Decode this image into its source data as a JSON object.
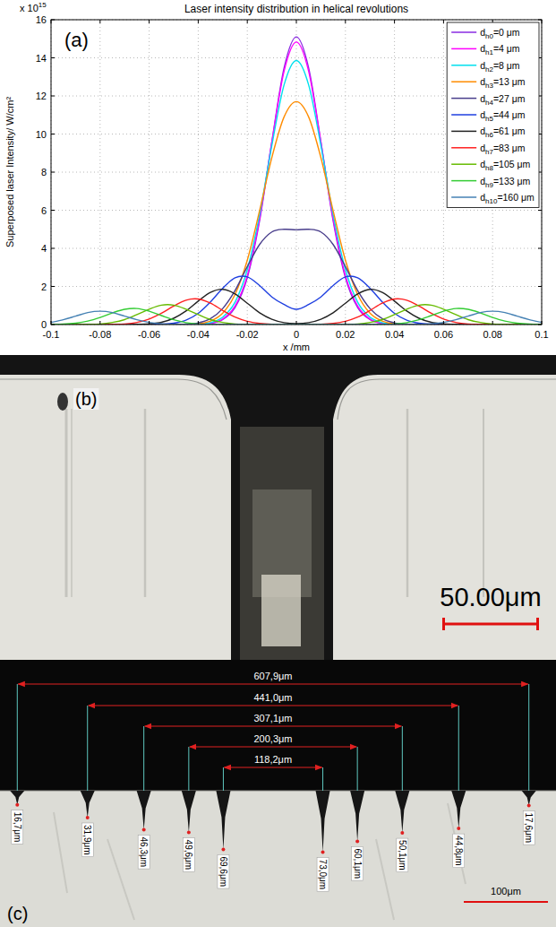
{
  "chart_data": {
    "type": "line",
    "panel_label": "(a)",
    "title": "Laser intensity distribution in helical revolutions",
    "xlabel": "x /mm",
    "ylabel": "Superposed laser Intensity/ W/cm²",
    "annotations": [
      {
        "text": "x 10",
        "superscript": "15"
      }
    ],
    "xlim": [
      -0.1,
      0.1
    ],
    "ylim": [
      0,
      16
    ],
    "xticks": [
      -0.1,
      -0.08,
      -0.06,
      -0.04,
      -0.02,
      0,
      0.02,
      0.04,
      0.06,
      0.08,
      0.1
    ],
    "yticks": [
      0,
      2,
      4,
      6,
      8,
      10,
      12,
      14,
      16
    ],
    "grid": true,
    "legend": "upper right",
    "x": [
      -0.1,
      -0.095,
      -0.09,
      -0.085,
      -0.08,
      -0.075,
      -0.07,
      -0.065,
      -0.06,
      -0.055,
      -0.05,
      -0.045,
      -0.04,
      -0.035,
      -0.03,
      -0.025,
      -0.02,
      -0.015,
      -0.01,
      -0.005,
      0,
      0.005,
      0.01,
      0.015,
      0.02,
      0.025,
      0.03,
      0.035,
      0.04,
      0.045,
      0.05,
      0.055,
      0.06,
      0.065,
      0.07,
      0.075,
      0.08,
      0.085,
      0.09,
      0.095,
      0.1
    ],
    "series": [
      {
        "name": "dh0=0 μm",
        "color": "#8a2be2",
        "values": [
          0,
          0,
          0,
          0,
          0,
          0,
          0,
          0,
          0,
          0,
          0,
          0,
          0.01,
          0.06,
          0.26,
          0.89,
          2.46,
          5.44,
          9.59,
          13.48,
          15.1,
          13.48,
          9.59,
          5.44,
          2.46,
          0.89,
          0.26,
          0.06,
          0.01,
          0,
          0,
          0,
          0,
          0,
          0,
          0,
          0,
          0,
          0,
          0,
          0
        ]
      },
      {
        "name": "dh1=4 μm",
        "color": "#ff00ff",
        "values": [
          0,
          0,
          0,
          0,
          0,
          0,
          0,
          0,
          0,
          0,
          0,
          0,
          0.01,
          0.07,
          0.29,
          0.97,
          2.57,
          5.55,
          9.57,
          13.3,
          14.83,
          13.3,
          9.57,
          5.55,
          2.57,
          0.97,
          0.29,
          0.07,
          0.01,
          0,
          0,
          0,
          0,
          0,
          0,
          0,
          0,
          0,
          0,
          0,
          0
        ]
      },
      {
        "name": "dh2=8 μm",
        "color": "#00e0ee",
        "values": [
          0,
          0,
          0,
          0,
          0,
          0,
          0,
          0,
          0,
          0,
          0,
          0,
          0.02,
          0.1,
          0.39,
          1.17,
          2.88,
          5.76,
          9.39,
          12.58,
          13.86,
          12.58,
          9.39,
          5.76,
          2.88,
          1.17,
          0.39,
          0.1,
          0.02,
          0,
          0,
          0,
          0,
          0,
          0,
          0,
          0,
          0,
          0,
          0,
          0
        ]
      },
      {
        "name": "dh3=13 μm",
        "color": "#ff8c00",
        "values": [
          0,
          0,
          0,
          0,
          0,
          0,
          0,
          0,
          0,
          0,
          0,
          0.01,
          0.04,
          0.18,
          0.6,
          1.58,
          3.38,
          5.97,
          8.76,
          10.9,
          11.7,
          10.9,
          8.76,
          5.97,
          3.38,
          1.58,
          0.6,
          0.18,
          0.04,
          0.01,
          0,
          0,
          0,
          0,
          0,
          0,
          0,
          0,
          0,
          0,
          0
        ]
      },
      {
        "name": "dh4=27 μm",
        "color": "#483d8b",
        "values": [
          0,
          0,
          0,
          0,
          0,
          0,
          0,
          0,
          0,
          0,
          0,
          0.02,
          0.09,
          0.31,
          0.84,
          1.78,
          3.04,
          4.2,
          4.86,
          5.0,
          4.97,
          5.0,
          4.86,
          4.2,
          3.04,
          1.78,
          0.84,
          0.31,
          0.09,
          0.02,
          0,
          0,
          0,
          0,
          0,
          0,
          0,
          0,
          0,
          0,
          0
        ]
      },
      {
        "name": "dh5=44 μm",
        "color": "#1f3fe0",
        "values": [
          0,
          0,
          0,
          0,
          0,
          0,
          0,
          0,
          0,
          0.02,
          0.07,
          0.23,
          0.59,
          1.19,
          1.91,
          2.45,
          2.5,
          2.05,
          1.45,
          1.05,
          0.8,
          1.05,
          1.45,
          2.05,
          2.5,
          2.45,
          1.91,
          1.19,
          0.59,
          0.23,
          0.07,
          0.02,
          0,
          0,
          0,
          0,
          0,
          0,
          0,
          0,
          0
        ]
      },
      {
        "name": "dh6=61 μm",
        "color": "#222222",
        "values": [
          0,
          0,
          0,
          0,
          0,
          0,
          0,
          0.01,
          0.04,
          0.12,
          0.33,
          0.71,
          1.23,
          1.69,
          1.85,
          1.61,
          1.12,
          0.62,
          0.28,
          0.1,
          0.05,
          0.1,
          0.28,
          0.62,
          1.12,
          1.61,
          1.85,
          1.69,
          1.23,
          0.71,
          0.33,
          0.12,
          0.04,
          0.01,
          0,
          0,
          0,
          0,
          0,
          0,
          0
        ]
      },
      {
        "name": "dh7=83 μm",
        "color": "#ff2020",
        "values": [
          0,
          0,
          0,
          0,
          0,
          0.01,
          0.03,
          0.11,
          0.29,
          0.59,
          0.97,
          1.28,
          1.34,
          1.12,
          0.74,
          0.39,
          0.17,
          0.06,
          0.01,
          0,
          0,
          0,
          0.01,
          0.06,
          0.17,
          0.39,
          0.74,
          1.12,
          1.34,
          1.28,
          0.97,
          0.59,
          0.29,
          0.11,
          0.03,
          0.01,
          0,
          0,
          0,
          0,
          0
        ]
      },
      {
        "name": "dh8=105 μm",
        "color": "#66bb00",
        "values": [
          0,
          0,
          0,
          0.01,
          0.03,
          0.11,
          0.26,
          0.52,
          0.81,
          1.02,
          1.02,
          0.81,
          0.52,
          0.26,
          0.11,
          0.03,
          0.01,
          0,
          0,
          0,
          0,
          0,
          0,
          0,
          0.01,
          0.03,
          0.11,
          0.26,
          0.52,
          0.81,
          1.02,
          1.02,
          0.81,
          0.52,
          0.26,
          0.11,
          0.03,
          0.01,
          0,
          0,
          0
        ]
      },
      {
        "name": "dh9=133 μm",
        "color": "#33cc33",
        "values": [
          0.01,
          0.02,
          0.07,
          0.18,
          0.37,
          0.61,
          0.8,
          0.84,
          0.7,
          0.47,
          0.25,
          0.1,
          0.03,
          0.01,
          0,
          0,
          0,
          0,
          0,
          0,
          0,
          0,
          0,
          0,
          0,
          0,
          0,
          0.01,
          0.03,
          0.1,
          0.25,
          0.47,
          0.7,
          0.84,
          0.8,
          0.61,
          0.37,
          0.18,
          0.07,
          0.02,
          0.01
        ]
      },
      {
        "name": "dh10=160 μm",
        "color": "#4682b4",
        "values": [
          0.11,
          0.25,
          0.44,
          0.63,
          0.7,
          0.63,
          0.44,
          0.25,
          0.11,
          0.04,
          0.01,
          0,
          0,
          0,
          0,
          0,
          0,
          0,
          0,
          0,
          0,
          0,
          0,
          0,
          0,
          0,
          0,
          0,
          0,
          0,
          0.01,
          0.04,
          0.11,
          0.25,
          0.44,
          0.63,
          0.7,
          0.63,
          0.44,
          0.25,
          0.11
        ]
      }
    ]
  },
  "photo_b": {
    "panel_label": "(b)",
    "scale_bar": {
      "value": 50,
      "label": "50.00μm"
    }
  },
  "photo_c": {
    "panel_label": "(c)",
    "widths": [
      {
        "value": 607.9,
        "label": "607,9μm"
      },
      {
        "value": 441.0,
        "label": "441,0μm"
      },
      {
        "value": 307.1,
        "label": "307,1μm"
      },
      {
        "value": 200.3,
        "label": "200,3μm"
      },
      {
        "value": 118.2,
        "label": "118,2μm"
      }
    ],
    "depths": [
      {
        "value": 16.7,
        "label": "16,7μm"
      },
      {
        "value": 31.9,
        "label": "31,9μm"
      },
      {
        "value": 46.3,
        "label": "46,3μm"
      },
      {
        "value": 49.6,
        "label": "49,6μm"
      },
      {
        "value": 69.6,
        "label": "69,6μm"
      },
      {
        "value": 73.0,
        "label": "73,0μm"
      },
      {
        "value": 60.1,
        "label": "60,1μm"
      },
      {
        "value": 50.1,
        "label": "50,1μm"
      },
      {
        "value": 44.8,
        "label": "44,8μm"
      },
      {
        "value": 17.6,
        "label": "17,6μm"
      }
    ],
    "scale_bar": {
      "value": 100,
      "label": "100μm"
    }
  }
}
